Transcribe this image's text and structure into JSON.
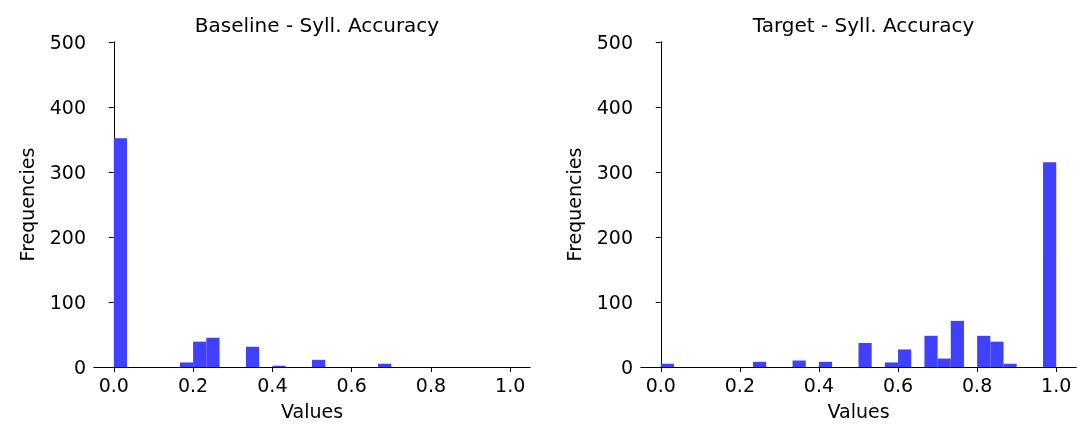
{
  "chart_data": [
    {
      "type": "histogram",
      "title": "Baseline - Syll. Accuracy",
      "xlabel": "Values",
      "ylabel": "Frequencies",
      "color": "#4040ff",
      "bins": [
        0,
        0.0333,
        0.0667,
        0.1,
        0.1333,
        0.1667,
        0.2,
        0.2333,
        0.2667,
        0.3,
        0.3333,
        0.3667,
        0.4,
        0.4333,
        0.4667,
        0.5,
        0.5333,
        0.5667,
        0.6,
        0.6333,
        0.6667,
        0.7,
        0.7333,
        0.7667,
        0.8,
        0.8333,
        0.8667,
        0.9,
        0.9333,
        0.9667,
        1
      ],
      "values": [
        352,
        0,
        0,
        0,
        0,
        7,
        39,
        45,
        0,
        0,
        31,
        0,
        2,
        0,
        0,
        11,
        0,
        0,
        0,
        0,
        5,
        0,
        0,
        0,
        0,
        0,
        0,
        0,
        0,
        0
      ],
      "xlim": [
        -0.05,
        1.05
      ],
      "ylim": [
        0,
        500
      ],
      "xticks": [
        {
          "value": 0,
          "label": "0.0"
        },
        {
          "value": 0.2,
          "label": "0.2"
        },
        {
          "value": 0.4,
          "label": "0.4"
        },
        {
          "value": 0.6,
          "label": "0.6"
        },
        {
          "value": 0.8,
          "label": "0.8"
        },
        {
          "value": 1,
          "label": "1.0"
        }
      ],
      "yticks": [
        0,
        100,
        200,
        300,
        400,
        500
      ]
    },
    {
      "type": "histogram",
      "title": "Target - Syll. Accuracy",
      "xlabel": "Values",
      "ylabel": "Frequencies",
      "color": "#4040ff",
      "bins": [
        0,
        0.0333,
        0.0667,
        0.1,
        0.1333,
        0.1667,
        0.2,
        0.2333,
        0.2667,
        0.3,
        0.3333,
        0.3667,
        0.4,
        0.4333,
        0.4667,
        0.5,
        0.5333,
        0.5667,
        0.6,
        0.6333,
        0.6667,
        0.7,
        0.7333,
        0.7667,
        0.8,
        0.8333,
        0.8667,
        0.9,
        0.9333,
        0.9667,
        1
      ],
      "values": [
        5,
        0,
        0,
        0,
        0,
        0,
        0,
        8,
        0,
        0,
        10,
        0,
        8,
        0,
        0,
        37,
        0,
        7,
        27,
        0,
        48,
        13,
        71,
        0,
        48,
        39,
        5,
        0,
        0,
        315
      ],
      "xlim": [
        -0.05,
        1.05
      ],
      "ylim": [
        0,
        500
      ],
      "xticks": [
        {
          "value": 0,
          "label": "0.0"
        },
        {
          "value": 0.2,
          "label": "0.2"
        },
        {
          "value": 0.4,
          "label": "0.4"
        },
        {
          "value": 0.6,
          "label": "0.6"
        },
        {
          "value": 0.8,
          "label": "0.8"
        },
        {
          "value": 1,
          "label": "1.0"
        }
      ],
      "yticks": [
        0,
        100,
        200,
        300,
        400,
        500
      ]
    }
  ]
}
